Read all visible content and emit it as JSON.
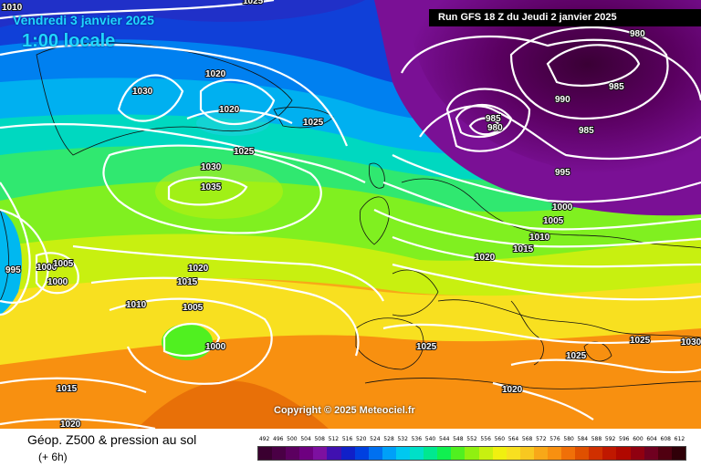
{
  "header": {
    "date": "Vendredi 3 janvier 2025",
    "time": "1:00 locale",
    "run": "Run GFS 18 Z du Jeudi 2 janvier 2025",
    "copyright": "Copyright © 2025 Meteociel.fr"
  },
  "isobars": [
    {
      "id": "1025-tl",
      "text": "1025"
    },
    {
      "id": "1010-tl",
      "text": "1010"
    },
    {
      "id": "1030",
      "text": "1030"
    },
    {
      "id": "1020-a",
      "text": "1020"
    },
    {
      "id": "1020-b",
      "text": "1020"
    },
    {
      "id": "1025-a",
      "text": "1025"
    },
    {
      "id": "1025-b",
      "text": "1025"
    },
    {
      "id": "1030-b",
      "text": "1030"
    },
    {
      "id": "1035",
      "text": "1035"
    },
    {
      "id": "995-l",
      "text": "995"
    },
    {
      "id": "1000-l",
      "text": "1000"
    },
    {
      "id": "1005-l",
      "text": "1005"
    },
    {
      "id": "1000-l2",
      "text": "1000"
    },
    {
      "id": "1020-c",
      "text": "1020"
    },
    {
      "id": "1015-c",
      "text": "1015"
    },
    {
      "id": "1010-c",
      "text": "1010"
    },
    {
      "id": "1005-c",
      "text": "1005"
    },
    {
      "id": "1000-c",
      "text": "1000"
    },
    {
      "id": "1015-d",
      "text": "1015"
    },
    {
      "id": "1020-d",
      "text": "1020"
    },
    {
      "id": "980-a",
      "text": "980"
    },
    {
      "id": "985-a",
      "text": "985"
    },
    {
      "id": "985-b",
      "text": "985"
    },
    {
      "id": "980-b",
      "text": "980"
    },
    {
      "id": "990",
      "text": "990"
    },
    {
      "id": "985-c",
      "text": "985"
    },
    {
      "id": "995",
      "text": "995"
    },
    {
      "id": "1000-e",
      "text": "1000"
    },
    {
      "id": "1005-e",
      "text": "1005"
    },
    {
      "id": "1010-e",
      "text": "1010"
    },
    {
      "id": "1015-e",
      "text": "1015"
    },
    {
      "id": "1020-e",
      "text": "1020"
    },
    {
      "id": "1025-e",
      "text": "1025"
    },
    {
      "id": "1025-f",
      "text": "1025"
    },
    {
      "id": "1025-g",
      "text": "1025"
    },
    {
      "id": "1030-r",
      "text": "1030"
    },
    {
      "id": "1020-f",
      "text": "1020"
    }
  ],
  "footer": {
    "title": "Géop. Z500 & pression au sol",
    "subtitle": "(+ 6h)"
  },
  "legend": {
    "ticks": [
      "492",
      "496",
      "500",
      "504",
      "508",
      "512",
      "516",
      "520",
      "524",
      "528",
      "532",
      "536",
      "540",
      "544",
      "548",
      "552",
      "556",
      "560",
      "564",
      "568",
      "572",
      "576",
      "580",
      "584",
      "588",
      "592",
      "596",
      "600",
      "604",
      "608",
      "612"
    ],
    "colors": [
      "#3a0030",
      "#4a0045",
      "#5c0060",
      "#6e0080",
      "#7d10a0",
      "#4010b0",
      "#1020c8",
      "#0040e0",
      "#0070f0",
      "#00a0f8",
      "#00c8f0",
      "#00e0c8",
      "#00e890",
      "#10f050",
      "#50f020",
      "#90f010",
      "#c8f010",
      "#f0f010",
      "#f8e020",
      "#f8c820",
      "#f8a818",
      "#f89010",
      "#f07008",
      "#e05000",
      "#d03000",
      "#c01800",
      "#b00800",
      "#900010",
      "#700020",
      "#500010",
      "#300008"
    ]
  }
}
